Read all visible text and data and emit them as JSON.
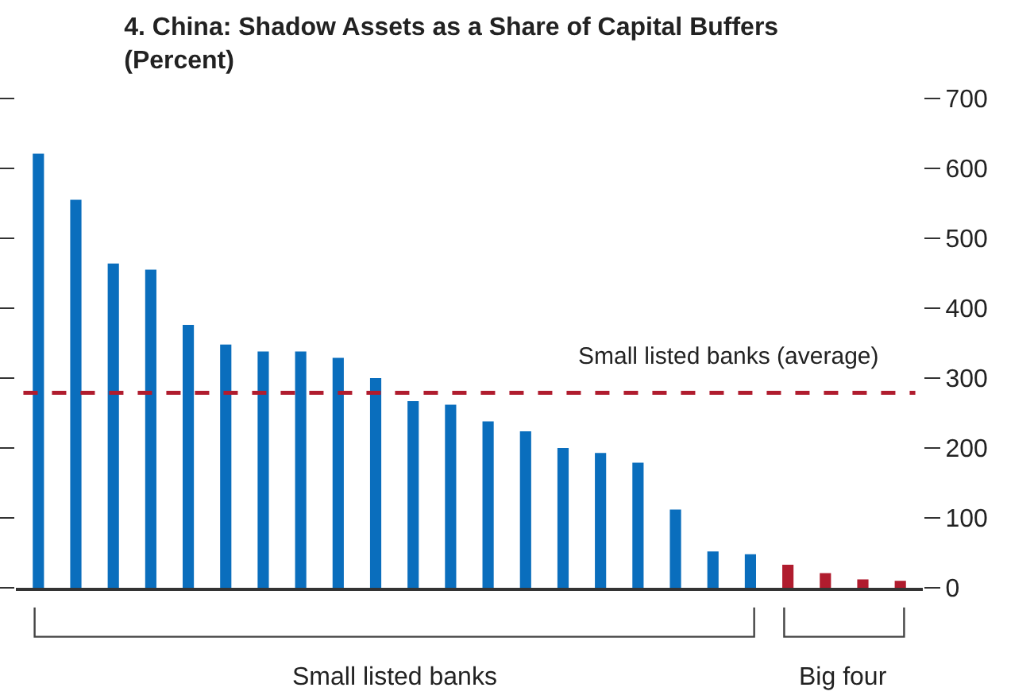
{
  "chart_data": {
    "type": "bar",
    "title": "4. China: Shadow Assets as a Share of Capital Buffers",
    "subtitle": "(Percent)",
    "categories": [
      null,
      null,
      null,
      null,
      null,
      null,
      null,
      null,
      null,
      null,
      null,
      null,
      null,
      null,
      null,
      null,
      null,
      null,
      null,
      null,
      null,
      null,
      null,
      null
    ],
    "values": [
      621,
      555,
      464,
      455,
      376,
      348,
      338,
      338,
      329,
      300,
      267,
      262,
      238,
      224,
      200,
      193,
      179,
      112,
      52,
      48,
      33,
      21,
      12,
      10
    ],
    "colors": [
      "#0a6ebd",
      "#0a6ebd",
      "#0a6ebd",
      "#0a6ebd",
      "#0a6ebd",
      "#0a6ebd",
      "#0a6ebd",
      "#0a6ebd",
      "#0a6ebd",
      "#0a6ebd",
      "#0a6ebd",
      "#0a6ebd",
      "#0a6ebd",
      "#0a6ebd",
      "#0a6ebd",
      "#0a6ebd",
      "#0a6ebd",
      "#0a6ebd",
      "#0a6ebd",
      "#0a6ebd",
      "#b01c2e",
      "#b01c2e",
      "#b01c2e",
      "#b01c2e"
    ],
    "ylim": [
      0,
      700
    ],
    "yticks": [
      0,
      100,
      200,
      300,
      400,
      500,
      600,
      700
    ],
    "ref_lines": [
      {
        "axis": "y",
        "value": 279,
        "label": "Small listed banks (average)",
        "color": "#b01c2e",
        "line_style": "dashed"
      }
    ],
    "annotations": [
      "Small listed banks",
      "Big four"
    ]
  }
}
